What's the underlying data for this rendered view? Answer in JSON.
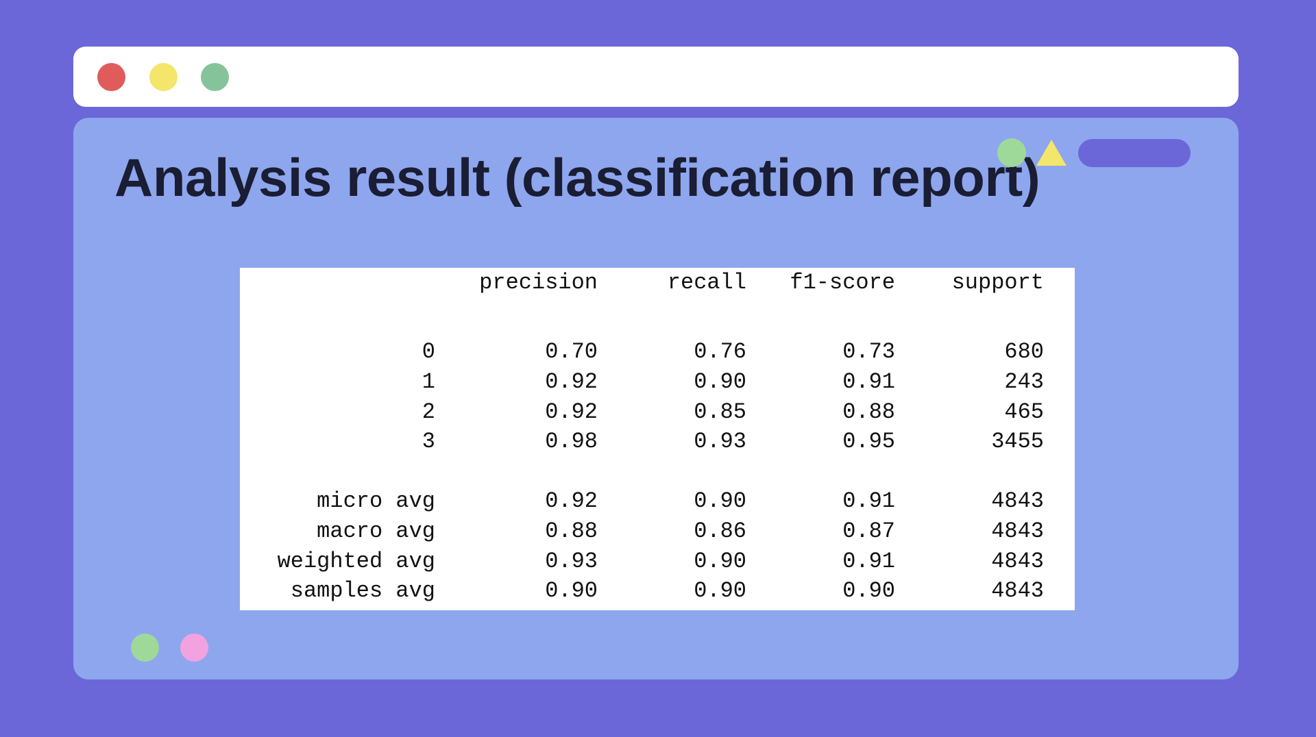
{
  "colors": {
    "background": "#6b67d8",
    "panel": "#8ea6ee",
    "window_red": "#e05b5b",
    "window_yellow": "#f4e56b",
    "window_green": "#85c49a",
    "deco_green": "#9fd99a",
    "deco_pink": "#f2a2df",
    "deco_pill": "#6b67d8"
  },
  "window": {
    "controls": [
      "close-dot",
      "minimize-dot",
      "maximize-dot"
    ]
  },
  "page": {
    "title": "Analysis result (classification report)"
  },
  "report": {
    "headers": [
      "",
      "precision",
      "recall",
      "f1-score",
      "support"
    ],
    "class_rows": [
      {
        "label": "0",
        "precision": "0.70",
        "recall": "0.76",
        "f1": "0.73",
        "support": "680"
      },
      {
        "label": "1",
        "precision": "0.92",
        "recall": "0.90",
        "f1": "0.91",
        "support": "243"
      },
      {
        "label": "2",
        "precision": "0.92",
        "recall": "0.85",
        "f1": "0.88",
        "support": "465"
      },
      {
        "label": "3",
        "precision": "0.98",
        "recall": "0.93",
        "f1": "0.95",
        "support": "3455"
      }
    ],
    "avg_rows": [
      {
        "label": "micro avg",
        "precision": "0.92",
        "recall": "0.90",
        "f1": "0.91",
        "support": "4843"
      },
      {
        "label": "macro avg",
        "precision": "0.88",
        "recall": "0.86",
        "f1": "0.87",
        "support": "4843"
      },
      {
        "label": "weighted avg",
        "precision": "0.93",
        "recall": "0.90",
        "f1": "0.91",
        "support": "4843"
      },
      {
        "label": "samples avg",
        "precision": "0.90",
        "recall": "0.90",
        "f1": "0.90",
        "support": "4843"
      }
    ]
  }
}
